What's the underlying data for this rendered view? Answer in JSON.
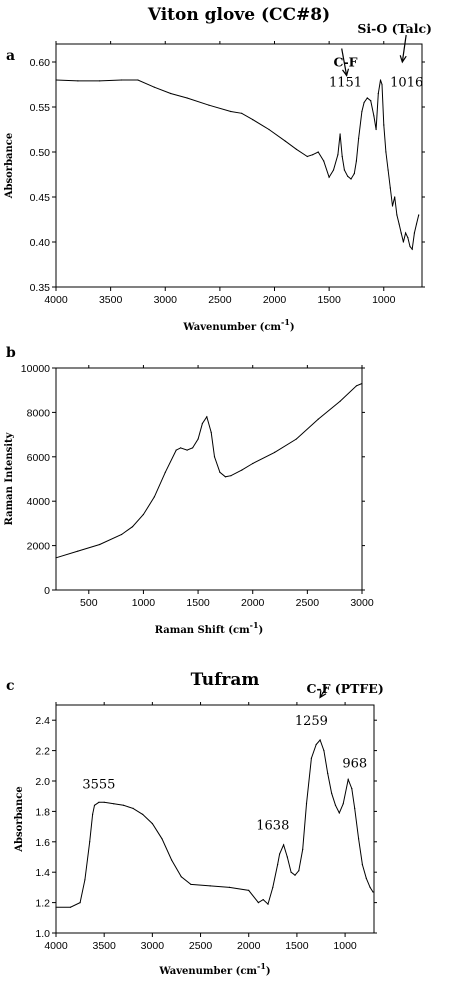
{
  "chart_data": [
    {
      "panel": "a",
      "type": "line",
      "title": "Viton glove (CC#8)",
      "xlabel": "Wavenumber (cm",
      "xlabel_sup": "-1",
      "xlabel_end": ")",
      "ylabel": "Absorbance",
      "xlim": [
        4000,
        650
      ],
      "x_reversed": true,
      "ylim": [
        0.35,
        0.62
      ],
      "xticks": [
        4000,
        3500,
        3000,
        2500,
        2000,
        1500,
        1000
      ],
      "yticks": [
        0.35,
        0.4,
        0.45,
        0.5,
        0.55,
        0.6
      ],
      "ytick_labels": [
        "0.35",
        "0.40",
        "0.45",
        "0.50",
        "0.55",
        "0.60"
      ],
      "series": [
        {
          "x": [
            4000,
            3800,
            3600,
            3400,
            3250,
            3100,
            2950,
            2800,
            2600,
            2400,
            2300,
            2200,
            2050,
            1900,
            1800,
            1700,
            1650,
            1600,
            1550,
            1500,
            1460,
            1420,
            1400,
            1380,
            1360,
            1330,
            1300,
            1270,
            1250,
            1230,
            1200,
            1180,
            1151,
            1120,
            1090,
            1070,
            1050,
            1030,
            1016,
            1000,
            980,
            960,
            940,
            920,
            900,
            880,
            860,
            840,
            820,
            800,
            780,
            760,
            740,
            720,
            700,
            680
          ],
          "values": [
            0.58,
            0.579,
            0.579,
            0.58,
            0.58,
            0.572,
            0.565,
            0.56,
            0.552,
            0.545,
            0.543,
            0.536,
            0.525,
            0.512,
            0.503,
            0.495,
            0.497,
            0.5,
            0.49,
            0.472,
            0.48,
            0.497,
            0.52,
            0.495,
            0.48,
            0.473,
            0.47,
            0.476,
            0.49,
            0.515,
            0.545,
            0.555,
            0.56,
            0.557,
            0.54,
            0.525,
            0.565,
            0.58,
            0.575,
            0.53,
            0.5,
            0.48,
            0.46,
            0.44,
            0.45,
            0.43,
            0.42,
            0.41,
            0.4,
            0.41,
            0.405,
            0.395,
            0.392,
            0.41,
            0.42,
            0.43
          ]
        }
      ],
      "annotations": [
        {
          "text": "C-F",
          "x": 1350,
          "y": 0.595,
          "style": "bold",
          "arrow": true
        },
        {
          "text": "1151",
          "x": 1350,
          "y": 0.573,
          "style": "normal",
          "arrow": false
        },
        {
          "text": "Si-O (Talc)",
          "x": 900,
          "y": 0.632,
          "style": "bold",
          "arrow": true
        },
        {
          "text": "1016",
          "x": 790,
          "y": 0.573,
          "style": "normal",
          "arrow": false
        }
      ]
    },
    {
      "panel": "b",
      "type": "line",
      "title": "",
      "xlabel": "Raman Shift (cm",
      "xlabel_sup": "-1",
      "xlabel_end": ")",
      "ylabel": "Raman Intensity",
      "xlim": [
        200,
        3000
      ],
      "x_reversed": false,
      "ylim": [
        0,
        10000
      ],
      "xticks": [
        500,
        1000,
        1500,
        2000,
        2500,
        3000
      ],
      "yticks": [
        0,
        2000,
        4000,
        6000,
        8000,
        10000
      ],
      "ytick_labels": [
        "0",
        "2000",
        "4000",
        "6000",
        "8000",
        "10000"
      ],
      "series": [
        {
          "x": [
            200,
            400,
            600,
            800,
            900,
            1000,
            1100,
            1200,
            1300,
            1340,
            1400,
            1450,
            1500,
            1540,
            1580,
            1620,
            1650,
            1700,
            1750,
            1800,
            1900,
            2000,
            2200,
            2400,
            2600,
            2800,
            2950,
            3000
          ],
          "values": [
            1450,
            1750,
            2050,
            2500,
            2850,
            3400,
            4200,
            5300,
            6300,
            6400,
            6300,
            6400,
            6800,
            7500,
            7800,
            7100,
            6000,
            5300,
            5100,
            5150,
            5400,
            5700,
            6200,
            6800,
            7700,
            8500,
            9200,
            9300
          ]
        }
      ],
      "annotations": []
    },
    {
      "panel": "c",
      "type": "line",
      "title": "Tufram",
      "xlabel": "Wavenumber (cm",
      "xlabel_sup": "-1",
      "xlabel_end": ")",
      "ylabel": "Absorbance",
      "xlim": [
        4000,
        700
      ],
      "x_reversed": true,
      "ylim": [
        1.0,
        2.5
      ],
      "xticks": [
        4000,
        3500,
        3000,
        2500,
        2000,
        1500,
        1000
      ],
      "yticks": [
        1.0,
        1.2,
        1.4,
        1.6,
        1.8,
        2.0,
        2.2,
        2.4
      ],
      "ytick_labels": [
        "1.0",
        "1.2",
        "1.4",
        "1.6",
        "1.8",
        "2.0",
        "2.2",
        "2.4"
      ],
      "series": [
        {
          "x": [
            4000,
            3850,
            3750,
            3700,
            3650,
            3620,
            3600,
            3555,
            3500,
            3400,
            3300,
            3200,
            3100,
            3000,
            2900,
            2800,
            2700,
            2600,
            2400,
            2200,
            2000,
            1900,
            1850,
            1800,
            1750,
            1700,
            1680,
            1638,
            1600,
            1560,
            1520,
            1480,
            1440,
            1400,
            1350,
            1300,
            1259,
            1220,
            1180,
            1140,
            1100,
            1060,
            1020,
            968,
            930,
            900,
            860,
            820,
            780,
            740,
            710
          ],
          "values": [
            1.17,
            1.17,
            1.2,
            1.35,
            1.6,
            1.78,
            1.84,
            1.86,
            1.86,
            1.85,
            1.84,
            1.82,
            1.78,
            1.72,
            1.62,
            1.48,
            1.37,
            1.32,
            1.31,
            1.3,
            1.28,
            1.2,
            1.22,
            1.19,
            1.3,
            1.45,
            1.52,
            1.58,
            1.5,
            1.4,
            1.38,
            1.41,
            1.55,
            1.85,
            2.15,
            2.24,
            2.27,
            2.2,
            2.05,
            1.92,
            1.84,
            1.79,
            1.85,
            2.01,
            1.95,
            1.82,
            1.62,
            1.45,
            1.36,
            1.3,
            1.27
          ]
        }
      ],
      "annotations": [
        {
          "text": "C-F (PTFE)",
          "x": 1000,
          "y": 2.58,
          "style": "bold",
          "arrow": true
        },
        {
          "text": "3555",
          "x": 3555,
          "y": 1.95,
          "style": "normal",
          "arrow": false
        },
        {
          "text": "1638",
          "x": 1750,
          "y": 1.68,
          "style": "normal",
          "arrow": false
        },
        {
          "text": "1259",
          "x": 1350,
          "y": 2.37,
          "style": "normal",
          "arrow": false
        },
        {
          "text": "968",
          "x": 900,
          "y": 2.09,
          "style": "normal",
          "arrow": false
        }
      ]
    }
  ]
}
